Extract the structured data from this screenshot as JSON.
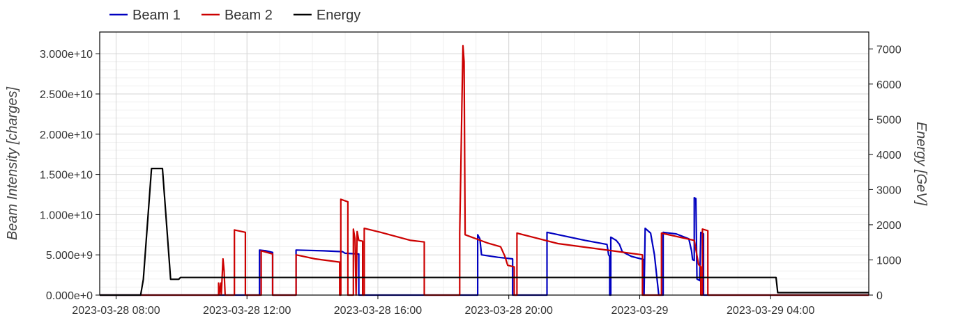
{
  "chart_data": {
    "type": "line",
    "x_range": [
      "2023-03-28 07:30",
      "2023-03-29 07:00"
    ],
    "x_ticks": [
      "2023-03-28 08:00",
      "2023-03-28 12:00",
      "2023-03-28 16:00",
      "2023-03-28 20:00",
      "2023-03-29",
      "2023-03-29 04:00"
    ],
    "x_tick_values": [
      "2023-03-28 08:00",
      "2023-03-28 12:00",
      "2023-03-28 16:00",
      "2023-03-28 20:00",
      "2023-03-29 00:00",
      "2023-03-29 04:00"
    ],
    "y_left": {
      "label": "Beam Intensity [charges]",
      "range": [
        0,
        32700000000.0
      ],
      "ticks": [
        0,
        5000000000.0,
        10000000000.0,
        15000000000.0,
        20000000000.0,
        25000000000.0,
        30000000000.0
      ],
      "tick_labels": [
        "0.000e+0",
        "5.000e+9",
        "1.000e+10",
        "1.500e+10",
        "2.000e+10",
        "2.500e+10",
        "3.000e+10"
      ]
    },
    "y_right": {
      "label": "Energy [GeV]",
      "range": [
        0,
        7480
      ],
      "ticks": [
        0,
        1000,
        2000,
        3000,
        4000,
        5000,
        6000,
        7000
      ],
      "tick_labels": [
        "0",
        "1000",
        "2000",
        "3000",
        "4000",
        "5000",
        "6000",
        "7000"
      ]
    },
    "grid": true,
    "legend_position": "top-left",
    "series": [
      {
        "name": "Beam 1",
        "color": "#0000c0",
        "axis": "left",
        "points": [
          [
            "2023-03-28 07:30",
            0
          ],
          [
            "2023-03-28 12:23",
            0
          ],
          [
            "2023-03-28 12:23",
            5600000000.0
          ],
          [
            "2023-03-28 12:35",
            5500000000.0
          ],
          [
            "2023-03-28 12:47",
            5300000000.0
          ],
          [
            "2023-03-28 12:47",
            0
          ],
          [
            "2023-03-28 13:30",
            0
          ],
          [
            "2023-03-28 13:30",
            5600000000.0
          ],
          [
            "2023-03-28 14:20",
            5500000000.0
          ],
          [
            "2023-03-28 14:55",
            5400000000.0
          ],
          [
            "2023-03-28 15:00",
            5200000000.0
          ],
          [
            "2023-03-28 15:25",
            5100000000.0
          ],
          [
            "2023-03-28 15:25",
            0
          ],
          [
            "2023-03-28 18:52",
            0
          ],
          [
            "2023-03-28 19:03",
            0
          ],
          [
            "2023-03-28 19:03",
            7500000000.0
          ],
          [
            "2023-03-28 19:07",
            7000000000.0
          ],
          [
            "2023-03-28 19:10",
            5000000000.0
          ],
          [
            "2023-03-28 19:40",
            4700000000.0
          ],
          [
            "2023-03-28 20:07",
            4500000000.0
          ],
          [
            "2023-03-28 20:07",
            0
          ],
          [
            "2023-03-28 21:10",
            0
          ],
          [
            "2023-03-28 21:10",
            7800000000.0
          ],
          [
            "2023-03-28 22:20",
            6800000000.0
          ],
          [
            "2023-03-28 23:00",
            6300000000.0
          ],
          [
            "2023-03-28 23:03",
            5000000000.0
          ],
          [
            "2023-03-28 23:05",
            4800000000.0
          ],
          [
            "2023-03-28 23:05",
            0
          ],
          [
            "2023-03-28 23:07",
            0
          ],
          [
            "2023-03-28 23:07",
            7200000000.0
          ],
          [
            "2023-03-28 23:17",
            6800000000.0
          ],
          [
            "2023-03-28 23:23",
            6300000000.0
          ],
          [
            "2023-03-28 23:28",
            5400000000.0
          ],
          [
            "2023-03-28 23:45",
            4800000000.0
          ],
          [
            "2023-03-29 00:08",
            4400000000.0
          ],
          [
            "2023-03-29 00:08",
            0
          ],
          [
            "2023-03-29 00:08",
            0
          ],
          [
            "2023-03-29 00:10",
            8300000000.0
          ],
          [
            "2023-03-29 00:20",
            7700000000.0
          ],
          [
            "2023-03-29 00:27",
            5000000000.0
          ],
          [
            "2023-03-29 00:35",
            0
          ],
          [
            "2023-03-29 00:43",
            0
          ],
          [
            "2023-03-29 00:43",
            7800000000.0
          ],
          [
            "2023-03-29 01:07",
            7600000000.0
          ],
          [
            "2023-03-29 01:30",
            7000000000.0
          ],
          [
            "2023-03-29 01:35",
            5500000000.0
          ],
          [
            "2023-03-29 01:37",
            4400000000.0
          ],
          [
            "2023-03-29 01:40",
            4300000000.0
          ],
          [
            "2023-03-29 01:40",
            12100000000.0
          ],
          [
            "2023-03-29 01:43",
            12000000000.0
          ],
          [
            "2023-03-29 01:45",
            2000000000.0
          ],
          [
            "2023-03-29 01:50",
            1800000000.0
          ],
          [
            "2023-03-29 01:52",
            7800000000.0
          ],
          [
            "2023-03-29 01:57",
            7600000000.0
          ],
          [
            "2023-03-29 01:57",
            0
          ],
          [
            "2023-03-29 07:00",
            0
          ]
        ]
      },
      {
        "name": "Beam 2",
        "color": "#cc0000",
        "axis": "left",
        "points": [
          [
            "2023-03-28 07:30",
            0
          ],
          [
            "2023-03-28 11:08",
            0
          ],
          [
            "2023-03-28 11:08",
            1500000000.0
          ],
          [
            "2023-03-28 11:09",
            0
          ],
          [
            "2023-03-28 11:12",
            1500000000.0
          ],
          [
            "2023-03-28 11:13",
            0
          ],
          [
            "2023-03-28 11:16",
            4500000000.0
          ],
          [
            "2023-03-28 11:18",
            3000000000.0
          ],
          [
            "2023-03-28 11:20",
            0
          ],
          [
            "2023-03-28 11:37",
            0
          ],
          [
            "2023-03-28 11:37",
            8100000000.0
          ],
          [
            "2023-03-28 11:57",
            7800000000.0
          ],
          [
            "2023-03-28 11:57",
            0
          ],
          [
            "2023-03-28 12:26",
            0
          ],
          [
            "2023-03-28 12:26",
            5500000000.0
          ],
          [
            "2023-03-28 12:47",
            5100000000.0
          ],
          [
            "2023-03-28 12:47",
            0
          ],
          [
            "2023-03-28 13:30",
            0
          ],
          [
            "2023-03-28 13:30",
            5000000000.0
          ],
          [
            "2023-03-28 14:05",
            4500000000.0
          ],
          [
            "2023-03-28 14:50",
            4100000000.0
          ],
          [
            "2023-03-28 14:50",
            0
          ],
          [
            "2023-03-28 14:52",
            0
          ],
          [
            "2023-03-28 14:52",
            11900000000.0
          ],
          [
            "2023-03-28 15:05",
            11600000000.0
          ],
          [
            "2023-03-28 15:05",
            0
          ],
          [
            "2023-03-28 15:15",
            0
          ],
          [
            "2023-03-28 15:15",
            8200000000.0
          ],
          [
            "2023-03-28 15:18",
            7000000000.0
          ],
          [
            "2023-03-28 15:20",
            0
          ],
          [
            "2023-03-28 15:22",
            7900000000.0
          ],
          [
            "2023-03-28 15:25",
            6800000000.0
          ],
          [
            "2023-03-28 15:32",
            6700000000.0
          ],
          [
            "2023-03-28 15:32",
            0
          ],
          [
            "2023-03-28 15:35",
            0
          ],
          [
            "2023-03-28 15:35",
            8300000000.0
          ],
          [
            "2023-03-28 16:05",
            7800000000.0
          ],
          [
            "2023-03-28 17:00",
            6800000000.0
          ],
          [
            "2023-03-28 17:25",
            6600000000.0
          ],
          [
            "2023-03-28 17:25",
            0
          ],
          [
            "2023-03-28 18:30",
            0
          ],
          [
            "2023-03-28 18:30",
            7700000000.0
          ],
          [
            "2023-03-28 18:32",
            15500000000.0
          ],
          [
            "2023-03-28 18:34",
            23500000000.0
          ],
          [
            "2023-03-28 18:36",
            31000000000.0
          ],
          [
            "2023-03-28 18:38",
            29000000000.0
          ],
          [
            "2023-03-28 18:40",
            7500000000.0
          ],
          [
            "2023-03-28 19:20",
            6500000000.0
          ],
          [
            "2023-03-28 19:45",
            6000000000.0
          ],
          [
            "2023-03-28 19:53",
            4800000000.0
          ],
          [
            "2023-03-28 19:58",
            3700000000.0
          ],
          [
            "2023-03-28 20:10",
            3500000000.0
          ],
          [
            "2023-03-28 20:10",
            0
          ],
          [
            "2023-03-28 20:15",
            0
          ],
          [
            "2023-03-28 20:15",
            7700000000.0
          ],
          [
            "2023-03-28 21:30",
            6400000000.0
          ],
          [
            "2023-03-28 23:10",
            5500000000.0
          ],
          [
            "2023-03-29 00:05",
            5000000000.0
          ],
          [
            "2023-03-29 00:05",
            0
          ],
          [
            "2023-03-29 00:40",
            0
          ],
          [
            "2023-03-29 00:40",
            7700000000.0
          ],
          [
            "2023-03-29 01:40",
            6800000000.0
          ],
          [
            "2023-03-29 01:48",
            3800000000.0
          ],
          [
            "2023-03-29 01:52",
            3500000000.0
          ],
          [
            "2023-03-29 01:52",
            0
          ],
          [
            "2023-03-29 01:55",
            0
          ],
          [
            "2023-03-29 01:55",
            8200000000.0
          ],
          [
            "2023-03-29 02:05",
            8000000000.0
          ],
          [
            "2023-03-29 02:05",
            0
          ],
          [
            "2023-03-29 07:00",
            0
          ]
        ]
      },
      {
        "name": "Energy",
        "color": "#000000",
        "axis": "right",
        "points": [
          [
            "2023-03-28 07:30",
            0
          ],
          [
            "2023-03-28 08:45",
            0
          ],
          [
            "2023-03-28 08:50",
            450
          ],
          [
            "2023-03-28 09:05",
            3600
          ],
          [
            "2023-03-28 09:25",
            3600
          ],
          [
            "2023-03-28 09:40",
            450
          ],
          [
            "2023-03-28 09:55",
            450
          ],
          [
            "2023-03-28 09:58",
            500
          ],
          [
            "2023-03-29 04:10",
            500
          ],
          [
            "2023-03-29 04:13",
            70
          ],
          [
            "2023-03-29 07:00",
            70
          ]
        ]
      }
    ]
  }
}
